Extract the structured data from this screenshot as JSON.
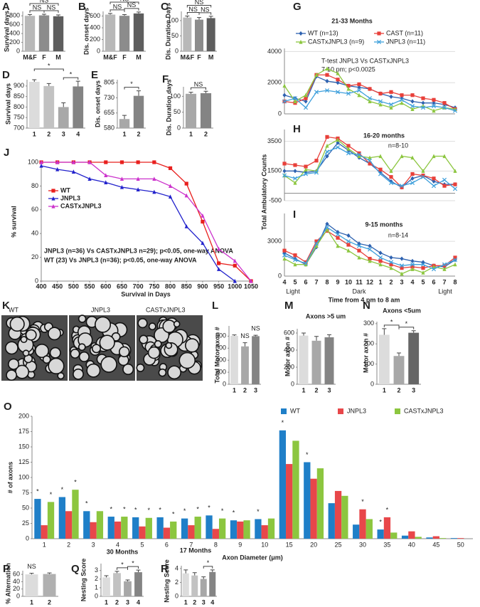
{
  "chart_data": [
    {
      "type": "bar",
      "label": "A",
      "ylabel": "Survival days",
      "categories": [
        "M&F",
        "F",
        "M"
      ],
      "values": [
        800,
        810,
        790
      ],
      "errors": [
        30,
        25,
        30
      ],
      "colors": [
        "#b8b8b8",
        "#8c8c8c",
        "#5e5e5e"
      ],
      "ylim": [
        0,
        900
      ],
      "yticks": [
        0,
        200,
        400,
        600,
        800
      ],
      "annotations": [
        "NS",
        "NS",
        "NS"
      ]
    },
    {
      "type": "bar",
      "label": "B",
      "ylabel": "Dis. onset days",
      "categories": [
        "M&F",
        "F",
        "M"
      ],
      "values": [
        625,
        605,
        645
      ],
      "errors": [
        20,
        20,
        25
      ],
      "colors": [
        "#b8b8b8",
        "#8c8c8c",
        "#5e5e5e"
      ],
      "ylim": [
        0,
        680
      ],
      "yticks": [
        0,
        200,
        400,
        600
      ],
      "annotations": [
        "NS",
        "NS",
        "NS"
      ]
    },
    {
      "type": "bar",
      "label": "C",
      "ylabel": "Dis. Duration Days",
      "categories": [
        "M&F",
        "F",
        "M"
      ],
      "values": [
        110,
        103,
        108
      ],
      "errors": [
        5,
        7,
        6
      ],
      "colors": [
        "#b8b8b8",
        "#8c8c8c",
        "#5e5e5e"
      ],
      "ylim": [
        0,
        130
      ],
      "yticks": [
        0,
        50,
        100
      ],
      "annotations": [
        "NS",
        "NS",
        "NS"
      ]
    },
    {
      "type": "bar",
      "label": "D",
      "ylabel": "Survival days",
      "categories": [
        "1",
        "2",
        "3",
        "4"
      ],
      "values": [
        920,
        900,
        800,
        898
      ],
      "errors": [
        10,
        12,
        20,
        25
      ],
      "colors": [
        "#dcdcdc",
        "#c2c2c2",
        "#a8a8a8",
        "#848484"
      ],
      "ylim": [
        700,
        930
      ],
      "yticks": [
        700,
        750,
        800,
        850,
        900
      ],
      "annotations": [
        "*",
        "*"
      ]
    },
    {
      "type": "bar",
      "label": "E",
      "ylabel": "Dis. onset days",
      "categories": [
        "1",
        "2"
      ],
      "values": [
        625,
        740
      ],
      "errors": [
        18,
        25
      ],
      "colors": [
        "#a8a8a8",
        "#848484"
      ],
      "ylim": [
        580,
        820
      ],
      "yticks": [
        580,
        655,
        730,
        805
      ],
      "annotations": [
        "*"
      ]
    },
    {
      "type": "bar",
      "label": "F",
      "ylabel": "Dis. Duration days",
      "categories": [
        "1",
        "2"
      ],
      "values": [
        108,
        110
      ],
      "errors": [
        5,
        6
      ],
      "colors": [
        "#a8a8a8",
        "#848484"
      ],
      "ylim": [
        0,
        130
      ],
      "yticks": [
        0,
        50,
        100
      ],
      "annotations": [
        "NS"
      ]
    },
    {
      "type": "line",
      "label": "G",
      "title": "21-33 Months",
      "grid": true,
      "ylim": [
        0,
        4200
      ],
      "yticks": [
        0,
        2000,
        4000
      ],
      "notes": [
        "T-test JNPL3 Vs CASTxJNPL3",
        "7-10 pm; p<0.0025"
      ],
      "series": [
        {
          "name": "WT (n=13)",
          "color": "#2e62b0",
          "marker": "diamond",
          "values": [
            1200,
            1000,
            800,
            2400,
            2100,
            2000,
            1800,
            1700,
            1600,
            1300,
            1100,
            1000,
            800,
            700,
            700,
            600,
            400
          ]
        },
        {
          "name": "CAST (n=11)",
          "color": "#e8403a",
          "marker": "square",
          "values": [
            800,
            700,
            1000,
            2500,
            2500,
            2200,
            1800,
            1900,
            1600,
            1300,
            1400,
            1200,
            1200,
            1000,
            900,
            700,
            300
          ]
        },
        {
          "name": "CASTxJNPL3 (n=9)",
          "color": "#8cc63f",
          "marker": "triangle",
          "values": [
            1800,
            800,
            1200,
            2500,
            2900,
            2600,
            1600,
            1200,
            800,
            600,
            400,
            700,
            300,
            500,
            200,
            400,
            300
          ]
        },
        {
          "name": "JNPL3 (n=11)",
          "color": "#3fa0dc",
          "marker": "x",
          "values": [
            800,
            1000,
            400,
            1400,
            1500,
            1400,
            1300,
            1500,
            1000,
            800,
            600,
            900,
            500,
            400,
            500,
            400,
            200
          ]
        }
      ]
    },
    {
      "type": "line",
      "label": "H",
      "title": "16-20 months",
      "subtitle": "n=8-10",
      "ylabel": "Total Ambulatory Counts",
      "grid": true,
      "ylim": [
        -500,
        4300
      ],
      "yticks": [
        -500,
        1500,
        3500
      ],
      "series": [
        {
          "color": "#2e62b0",
          "marker": "diamond",
          "values": [
            1500,
            1500,
            1400,
            1500,
            2500,
            3400,
            2900,
            2400,
            2000,
            1400,
            800,
            400,
            1000,
            1200,
            800,
            600,
            600
          ]
        },
        {
          "color": "#e8403a",
          "marker": "square",
          "values": [
            2000,
            1900,
            1800,
            2200,
            3800,
            3700,
            3200,
            2700,
            2000,
            1600,
            1100,
            400,
            1300,
            1200,
            1000,
            500,
            600
          ]
        },
        {
          "color": "#8cc63f",
          "marker": "triangle",
          "values": [
            1200,
            700,
            1600,
            1500,
            3200,
            3600,
            3000,
            2500,
            2400,
            2500,
            1500,
            2500,
            2400,
            1500,
            2500,
            2500,
            1500
          ]
        },
        {
          "color": "#3fa0dc",
          "marker": "x",
          "values": [
            1200,
            1000,
            1300,
            1400,
            2800,
            3100,
            2700,
            2600,
            2200,
            1300,
            700,
            500,
            700,
            1100,
            500,
            900,
            300
          ]
        }
      ]
    },
    {
      "type": "line",
      "label": "I",
      "title": "9-15 months",
      "subtitle": "n=8-14",
      "xlabel": "Time from 4 pm to 8 am",
      "period_labels": [
        "Light",
        "Dark",
        "Light"
      ],
      "grid": true,
      "ylim": [
        0,
        5400
      ],
      "yticks": [
        0,
        3000
      ],
      "categories": [
        "4",
        "5",
        "6",
        "7",
        "8",
        "9",
        "10",
        "11",
        "12",
        "1",
        "2",
        "3",
        "4",
        "5",
        "6",
        "7",
        "8"
      ],
      "series": [
        {
          "color": "#2e62b0",
          "marker": "diamond",
          "values": [
            2000,
            1500,
            1000,
            2500,
            4500,
            3800,
            3500,
            2800,
            2600,
            2000,
            1600,
            1500,
            1300,
            1200,
            900,
            800,
            1400
          ]
        },
        {
          "color": "#e8403a",
          "marker": "square",
          "values": [
            2200,
            1800,
            1200,
            3000,
            3900,
            3300,
            2700,
            2200,
            1500,
            1300,
            1000,
            700,
            800,
            700,
            900,
            900,
            1600
          ]
        },
        {
          "color": "#8cc63f",
          "marker": "triangle",
          "values": [
            1500,
            1000,
            1000,
            2600,
            4000,
            2600,
            2200,
            1600,
            1300,
            1000,
            700,
            200,
            600,
            300,
            800,
            600,
            1000
          ]
        },
        {
          "color": "#3fa0dc",
          "marker": "x",
          "values": [
            1800,
            1400,
            1100,
            2800,
            4200,
            3600,
            3000,
            2600,
            2300,
            1600,
            1200,
            900,
            1000,
            1000,
            600,
            1000,
            1400
          ]
        }
      ]
    },
    {
      "type": "line",
      "label": "J",
      "ylabel": "% survival",
      "xlabel": "Survival in Days",
      "xlim": [
        400,
        1050
      ],
      "xticks": [
        400,
        450,
        500,
        550,
        600,
        650,
        700,
        750,
        800,
        850,
        900,
        950,
        1000,
        1050
      ],
      "ylim": [
        0,
        100
      ],
      "yticks": [
        0,
        20,
        40,
        60,
        80,
        100
      ],
      "notes": [
        "JNPL3 (n=36) Vs CASTxJNPL3 n=29); p<0.05, one-way ANOVA",
        "WT (23) Vs JNPL3 (n=36); p<0.05, one-way ANOVA"
      ],
      "x": [
        400,
        450,
        500,
        550,
        600,
        650,
        700,
        750,
        800,
        850,
        900,
        950,
        1000,
        1050
      ],
      "series": [
        {
          "name": "WT",
          "color": "#e8201e",
          "marker": "square",
          "values": [
            100,
            100,
            100,
            100,
            100,
            100,
            100,
            100,
            95,
            82,
            50,
            15,
            13,
            0
          ]
        },
        {
          "name": "JNPL3",
          "color": "#2222cc",
          "marker": "triangle",
          "values": [
            97,
            94,
            92,
            86,
            83,
            79,
            77,
            75,
            71,
            46,
            32,
            10,
            0,
            null
          ]
        },
        {
          "name": "CASTxJNPL3",
          "color": "#cc33cc",
          "marker": "triangle",
          "values": [
            100,
            100,
            100,
            100,
            89,
            86,
            86,
            86,
            80,
            72,
            55,
            27,
            17,
            0
          ]
        }
      ]
    },
    {
      "type": "bar",
      "label": "L",
      "ylabel": "Total Motor axon #",
      "categories": [
        "1",
        "2",
        "3"
      ],
      "values": [
        805,
        630,
        800
      ],
      "errors": [
        15,
        60,
        15
      ],
      "colors": [
        "#dcdcdc",
        "#a8a8a8",
        "#848484"
      ],
      "ylim": [
        0,
        970
      ],
      "yticks": [
        0,
        200,
        400,
        600,
        800
      ],
      "annotations": [
        "NS",
        "NS"
      ]
    },
    {
      "type": "bar",
      "label": "M",
      "title": "Axons >5 um",
      "ylabel": "Motor axon #",
      "categories": [
        "1",
        "2",
        "3"
      ],
      "values": [
        570,
        510,
        550
      ],
      "errors": [
        30,
        50,
        30
      ],
      "colors": [
        "#dcdcdc",
        "#a8a8a8",
        "#848484"
      ],
      "ylim": [
        0,
        650
      ],
      "yticks": [
        0,
        200,
        400,
        600
      ],
      "annotations": []
    },
    {
      "type": "bar",
      "label": "N",
      "title": "Axons <5um",
      "ylabel": "Motor axon #",
      "categories": [
        "1",
        "2",
        "3"
      ],
      "values": [
        245,
        140,
        255
      ],
      "errors": [
        30,
        15,
        10
      ],
      "colors": [
        "#dcdcdc",
        "#a8a8a8",
        "#666666"
      ],
      "ylim": [
        0,
        310
      ],
      "yticks": [
        0,
        100,
        200,
        300
      ],
      "annotations": [
        "*",
        "*"
      ]
    },
    {
      "type": "bar",
      "label": "O",
      "ylabel": "# of axons",
      "xlabel": "Axon Diameter (μm)",
      "categories": [
        "1",
        "2",
        "3",
        "4",
        "5",
        "6",
        "7",
        "8",
        "9",
        "10",
        "15",
        "20",
        "25",
        "30",
        "35",
        "40",
        "45",
        "50"
      ],
      "ylim": [
        0,
        200
      ],
      "yticks": [
        0,
        25,
        50,
        75,
        100,
        125,
        150,
        175,
        200
      ],
      "annotations": [
        "*",
        "*",
        "*",
        "*",
        "*",
        "*",
        "*",
        "*",
        "*",
        "*",
        "*",
        "*",
        "*",
        "*",
        "*",
        "*",
        "*",
        "*",
        "*",
        "*",
        "*",
        "*"
      ],
      "series": [
        {
          "name": "WT",
          "color": "#1f7fc8",
          "values": [
            65,
            68,
            45,
            36,
            35,
            35,
            33,
            38,
            30,
            32,
            177,
            125,
            58,
            23,
            15,
            5,
            2,
            1
          ]
        },
        {
          "name": "JNPL3",
          "color": "#e8474a",
          "values": [
            22,
            45,
            27,
            28,
            20,
            18,
            22,
            16,
            28,
            22,
            122,
            98,
            78,
            48,
            35,
            12,
            4,
            1
          ]
        },
        {
          "name": "CASTxJNPL3",
          "color": "#8cc63f",
          "values": [
            60,
            80,
            45,
            36,
            34,
            28,
            36,
            33,
            30,
            33,
            160,
            115,
            70,
            32,
            10,
            3,
            1,
            0
          ]
        }
      ]
    },
    {
      "type": "bar",
      "label": "P",
      "ylabel": "% Alternation",
      "categories": [
        "1",
        "2"
      ],
      "values": [
        60,
        61
      ],
      "errors": [
        3,
        3
      ],
      "colors": [
        "#dcdcdc",
        "#b0b0b0"
      ],
      "ylim": [
        0,
        70
      ],
      "yticks": [
        0,
        20,
        40,
        60
      ],
      "annotations": [
        "NS"
      ]
    },
    {
      "type": "bar",
      "label": "Q",
      "title": "30 Months",
      "ylabel": "Nesting Score",
      "categories": [
        "1",
        "2",
        "3",
        "4"
      ],
      "values": [
        2.2,
        2.7,
        1.75,
        2.8
      ],
      "errors": [
        0.2,
        0.2,
        0.15,
        0.25
      ],
      "colors": [
        "#dcdcdc",
        "#c2c2c2",
        "#a8a8a8",
        "#848484"
      ],
      "ylim": [
        0,
        3.8
      ],
      "yticks": [
        0,
        1,
        2,
        3
      ],
      "annotations": [
        "*",
        "*"
      ]
    },
    {
      "type": "bar",
      "label": "R",
      "title": "17 Months",
      "ylabel": "Nesting Score",
      "categories": [
        "1",
        "2",
        "3",
        "4"
      ],
      "values": [
        3.3,
        3.0,
        2.5,
        3.5
      ],
      "errors": [
        0.5,
        0.4,
        0.3,
        0.3
      ],
      "colors": [
        "#dcdcdc",
        "#c2c2c2",
        "#a8a8a8",
        "#848484"
      ],
      "ylim": [
        0,
        4.4
      ],
      "yticks": [
        0,
        2,
        4
      ],
      "annotations": [
        "*"
      ]
    }
  ],
  "micrographs": {
    "label": "K",
    "panels": [
      "WT",
      "JNPL3",
      "CASTxJNPL3"
    ]
  }
}
